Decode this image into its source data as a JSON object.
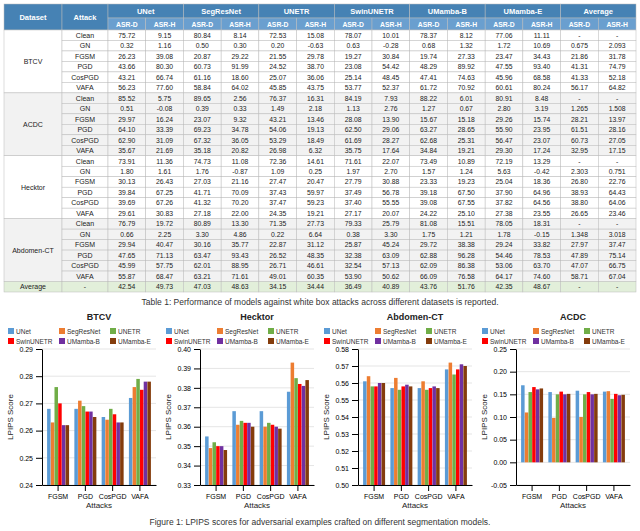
{
  "chart_data": [
    {
      "type": "table",
      "title": "Table 1: Performance of models against white box attacks across different datasets is reported.",
      "header": [
        "Dataset",
        "Attack",
        "UNet",
        "SegResNet",
        "UNETR",
        "SwinUNETR",
        "UMamba-B",
        "UMamba-E",
        "Average"
      ],
      "subheader": [
        "ASR-D",
        "ASR-H",
        "ASR-D",
        "ASR-H",
        "ASR-D",
        "ASR-H",
        "ASR-D",
        "ASR-H",
        "ASR-D",
        "ASR-H",
        "ASR-D",
        "ASR-H",
        "ASR-D",
        "ASR-H"
      ],
      "groups": [
        {
          "dataset": "BTCV",
          "rows": [
            [
              "Clean",
              "75.72",
              "9.15",
              "80.84",
              "8.14",
              "72.53",
              "15.08",
              "78.07",
              "10.01",
              "78.37",
              "8.12",
              "77.06",
              "11.11",
              "-",
              "-"
            ],
            [
              "GN",
              "0.32",
              "1.16",
              "0.50",
              "0.30",
              "0.20",
              "-0.63",
              "0.63",
              "-0.28",
              "0.68",
              "1.32",
              "1.72",
              "10.69",
              "0.675",
              "2.093"
            ],
            [
              "FGSM",
              "26.23",
              "39.08",
              "20.87",
              "29.22",
              "21.55",
              "29.78",
              "19.27",
              "30.84",
              "19.74",
              "27.33",
              "23.47",
              "34.43",
              "21.86",
              "31.78"
            ],
            [
              "PGD",
              "43.66",
              "80.30",
              "60.73",
              "91.99",
              "24.52",
              "38.70",
              "23.08",
              "54.42",
              "48.29",
              "89.92",
              "47.55",
              "93.40",
              "41.31",
              "74.79"
            ],
            [
              "CosPGD",
              "43.21",
              "66.74",
              "61.16",
              "18.60",
              "25.07",
              "36.06",
              "25.14",
              "48.45",
              "47.41",
              "74.63",
              "45.96",
              "68.58",
              "41.33",
              "52.18"
            ],
            [
              "VAFA",
              "56.23",
              "77.60",
              "58.84",
              "64.02",
              "45.85",
              "43.75",
              "53.77",
              "52.37",
              "61.72",
              "70.92",
              "60.61",
              "80.24",
              "56.17",
              "64.82"
            ]
          ]
        },
        {
          "dataset": "ACDC",
          "rows": [
            [
              "Clean",
              "85.52",
              "5.75",
              "89.65",
              "2.56",
              "76.37",
              "16.31",
              "84.19",
              "7.93",
              "88.22",
              "6.01",
              "80.91",
              "8.48",
              "-",
              "-"
            ],
            [
              "GN",
              "0.51",
              "-0.08",
              "0.39",
              "0.33",
              "1.49",
              "2.18",
              "1.13",
              "2.76",
              "1.27",
              "0.67",
              "2.80",
              "3.19",
              "1.265",
              "1.508"
            ],
            [
              "FGSM",
              "29.97",
              "16.24",
              "23.07",
              "9.32",
              "43.21",
              "13.46",
              "28.08",
              "13.90",
              "15.67",
              "15.18",
              "29.26",
              "15.74",
              "28.21",
              "13.97"
            ],
            [
              "PGD",
              "64.10",
              "33.39",
              "69.23",
              "34.78",
              "54.06",
              "19.13",
              "62.50",
              "29.06",
              "63.27",
              "28.65",
              "55.90",
              "23.95",
              "61.51",
              "28.16"
            ],
            [
              "CosPGD",
              "62.90",
              "31.09",
              "67.32",
              "36.05",
              "53.29",
              "18.49",
              "61.69",
              "28.27",
              "62.68",
              "25.31",
              "56.47",
              "23.07",
              "60.73",
              "27.05"
            ],
            [
              "VAFA",
              "35.67",
              "21.69",
              "35.18",
              "20.82",
              "26.98",
              "6.32",
              "35.75",
              "17.64",
              "34.84",
              "19.21",
              "29.30",
              "17.24",
              "32.95",
              "17.15"
            ]
          ]
        },
        {
          "dataset": "Hecktor",
          "rows": [
            [
              "Clean",
              "73.91",
              "11.36",
              "74.73",
              "11.08",
              "72.36",
              "14.61",
              "71.61",
              "22.07",
              "73.49",
              "10.89",
              "72.19",
              "13.29",
              "-",
              "-"
            ],
            [
              "GN",
              "1.80",
              "1.61",
              "1.76",
              "-0.87",
              "1.09",
              "0.25",
              "1.97",
              "2.70",
              "1.57",
              "1.24",
              "5.63",
              "-0.42",
              "2.303",
              "0.751"
            ],
            [
              "FGSM",
              "30.13",
              "26.43",
              "27.03",
              "21.16",
              "27.47",
              "20.47",
              "27.79",
              "30.88",
              "23.33",
              "19.23",
              "25.04",
              "18.36",
              "26.80",
              "22.76"
            ],
            [
              "PGD",
              "39.84",
              "67.25",
              "41.71",
              "70.09",
              "37.43",
              "59.97",
              "37.49",
              "56.78",
              "39.18",
              "67.50",
              "37.90",
              "64.96",
              "38.93",
              "64.43"
            ],
            [
              "CosPGD",
              "39.69",
              "67.26",
              "41.32",
              "70.20",
              "37.47",
              "59.23",
              "37.40",
              "55.55",
              "39.08",
              "67.55",
              "37.82",
              "64.56",
              "38.80",
              "64.06"
            ],
            [
              "VAFA",
              "29.61",
              "30.83",
              "27.18",
              "22.00",
              "24.35",
              "19.21",
              "27.17",
              "20.07",
              "24.22",
              "25.10",
              "27.38",
              "23.55",
              "26.65",
              "23.46"
            ]
          ]
        },
        {
          "dataset": "Abdomen-CT",
          "rows": [
            [
              "Clean",
              "76.79",
              "19.72",
              "80.89",
              "13.30",
              "71.35",
              "27.73",
              "79.33",
              "25.79",
              "81.08",
              "15.51",
              "78.05",
              "18.31",
              "-",
              "-"
            ],
            [
              "GN",
              "0.66",
              "2.25",
              "3.30",
              "4.86",
              "0.22",
              "6.64",
              "0.38",
              "3.30",
              "1.75",
              "1.21",
              "1.78",
              "-0.15",
              "1.348",
              "3.018"
            ],
            [
              "FGSM",
              "29.94",
              "40.47",
              "30.16",
              "35.77",
              "22.87",
              "31.12",
              "25.87",
              "45.24",
              "29.72",
              "38.38",
              "29.24",
              "33.82",
              "27.97",
              "37.47"
            ],
            [
              "PGD",
              "47.65",
              "71.13",
              "63.47",
              "93.43",
              "26.52",
              "48.35",
              "32.38",
              "63.09",
              "62.88",
              "96.28",
              "54.46",
              "78.53",
              "47.89",
              "75.14"
            ],
            [
              "CosPGD",
              "45.99",
              "57.75",
              "62.01",
              "88.95",
              "26.71",
              "46.61",
              "32.54",
              "57.13",
              "62.09",
              "86.38",
              "53.06",
              "63.70",
              "47.07",
              "66.75"
            ],
            [
              "VAFA",
              "55.87",
              "68.47",
              "63.21",
              "71.61",
              "49.01",
              "60.35",
              "53.90",
              "50.62",
              "66.09",
              "76.58",
              "64.17",
              "74.60",
              "58.71",
              "67.04"
            ]
          ]
        }
      ],
      "average_label": "Average",
      "average_row": [
        "-",
        "42.54",
        "49.73",
        "47.03",
        "48.63",
        "34.15",
        "34.44",
        "36.49",
        "40.89",
        "43.76",
        "51.76",
        "42.35",
        "48.67",
        "-",
        "-"
      ]
    },
    {
      "type": "bar",
      "title": "BTCV",
      "x_label": "Attacks",
      "y_label": "LPIPS Score",
      "categories": [
        "FGSM",
        "PGD",
        "CosPGD",
        "VAFA"
      ],
      "series": [
        {
          "name": "UNet",
          "color": "#5B9BD5",
          "values": [
            0.268,
            0.268,
            0.265,
            0.272
          ]
        },
        {
          "name": "SegResNet",
          "color": "#ED7D31",
          "values": [
            0.263,
            0.271,
            0.264,
            0.276
          ]
        },
        {
          "name": "UNETR",
          "color": "#70AD47",
          "values": [
            0.276,
            0.269,
            0.268,
            0.279
          ]
        },
        {
          "name": "SwinUNETR",
          "color": "#FF0000",
          "values": [
            0.27,
            0.267,
            0.266,
            0.275
          ]
        },
        {
          "name": "UMamba-B",
          "color": "#7030A0",
          "values": [
            0.262,
            0.267,
            0.263,
            0.278
          ]
        },
        {
          "name": "UMamba-E",
          "color": "#843C0C",
          "values": [
            0.262,
            0.265,
            0.263,
            0.278
          ]
        }
      ],
      "ylim": [
        0.24,
        0.29
      ],
      "yticks": [
        0.24,
        0.25,
        0.26,
        0.27,
        0.28,
        0.29
      ],
      "grid": true,
      "legend": "top",
      "annotations": [
        "Figure 1: LPIPS scores for adversarial examples crafted on different segmentation models."
      ]
    },
    {
      "type": "bar",
      "title": "Hecktor",
      "x_label": "Attacks",
      "y_label": "LPIPS Score",
      "categories": [
        "FGSM",
        "PGD",
        "CosPGD",
        "VAFA"
      ],
      "series": [
        {
          "name": "UNet",
          "color": "#5B9BD5",
          "values": [
            0.355,
            0.368,
            0.368,
            0.378
          ]
        },
        {
          "name": "SegResNet",
          "color": "#ED7D31",
          "values": [
            0.349,
            0.361,
            0.36,
            0.393
          ]
        },
        {
          "name": "UNETR",
          "color": "#70AD47",
          "values": [
            0.352,
            0.363,
            0.362,
            0.385
          ]
        },
        {
          "name": "SwinUNETR",
          "color": "#FF0000",
          "values": [
            0.35,
            0.362,
            0.361,
            0.382
          ]
        },
        {
          "name": "UMamba-B",
          "color": "#7030A0",
          "values": [
            0.35,
            0.362,
            0.36,
            0.381
          ]
        },
        {
          "name": "UMamba-E",
          "color": "#843C0C",
          "values": [
            0.348,
            0.36,
            0.359,
            0.384
          ]
        }
      ],
      "ylim": [
        0.33,
        0.4
      ],
      "yticks": [
        0.33,
        0.34,
        0.35,
        0.36,
        0.37,
        0.38,
        0.39,
        {
          "value": 0.4,
          "label": "0.40"
        }
      ],
      "grid": true,
      "legend": "top"
    },
    {
      "type": "bar",
      "title": "Abdomen-CT",
      "x_label": "Attacks",
      "y_label": "LPIPS Score",
      "categories": [
        "FGSM",
        "PGD",
        "CosPGD",
        "VAFA"
      ],
      "series": [
        {
          "name": "UNet",
          "color": "#5B9BD5",
          "values": [
            0.561,
            0.557,
            0.557,
            0.568
          ]
        },
        {
          "name": "SegResNet",
          "color": "#ED7D31",
          "values": [
            0.564,
            0.563,
            0.561,
            0.572
          ]
        },
        {
          "name": "UNETR",
          "color": "#70AD47",
          "values": [
            0.558,
            0.556,
            0.556,
            0.565
          ]
        },
        {
          "name": "SwinUNETR",
          "color": "#FF0000",
          "values": [
            0.558,
            0.558,
            0.557,
            0.568
          ]
        },
        {
          "name": "UMamba-B",
          "color": "#7030A0",
          "values": [
            0.56,
            0.559,
            0.558,
            0.571
          ]
        },
        {
          "name": "UMamba-E",
          "color": "#843C0C",
          "values": [
            0.56,
            0.558,
            0.557,
            0.57
          ]
        }
      ],
      "ylim": [
        0.5,
        0.58
      ],
      "yticks": [
        {
          "value": 0.5,
          "label": "0.50"
        },
        0.51,
        0.52,
        0.53,
        0.54,
        0.55,
        0.56,
        0.57,
        0.58
      ],
      "grid": true,
      "legend": "top"
    },
    {
      "type": "bar",
      "title": "ACDC",
      "x_label": "Attacks",
      "y_label": "LPIPS Score",
      "categories": [
        "FGSM",
        "PGD",
        "CosPGD",
        "VAFA"
      ],
      "series": [
        {
          "name": "UNet",
          "color": "#5B9BD5",
          "values": [
            0.17,
            0.155,
            0.158,
            0.156
          ]
        },
        {
          "name": "SegResNet",
          "color": "#ED7D31",
          "values": [
            0.11,
            0.098,
            0.1,
            0.157
          ]
        },
        {
          "name": "UNETR",
          "color": "#70AD47",
          "values": [
            0.155,
            0.15,
            0.15,
            0.14
          ]
        },
        {
          "name": "SwinUNETR",
          "color": "#FF0000",
          "values": [
            0.166,
            0.156,
            0.155,
            0.151
          ]
        },
        {
          "name": "UMamba-B",
          "color": "#7030A0",
          "values": [
            0.161,
            0.15,
            0.15,
            0.148
          ]
        },
        {
          "name": "UMamba-E",
          "color": "#843C0C",
          "values": [
            0.163,
            0.151,
            0.151,
            0.149
          ]
        }
      ],
      "ylim": [
        -0.05,
        0.25
      ],
      "yticks": [
        -0.05,
        {
          "value": 0,
          "label": "0.00"
        },
        0.05,
        {
          "value": 0.1,
          "label": "0.10"
        },
        0.15,
        {
          "value": 0.2,
          "label": "0.20"
        },
        0.25
      ],
      "grid": true,
      "legend": "top"
    }
  ]
}
